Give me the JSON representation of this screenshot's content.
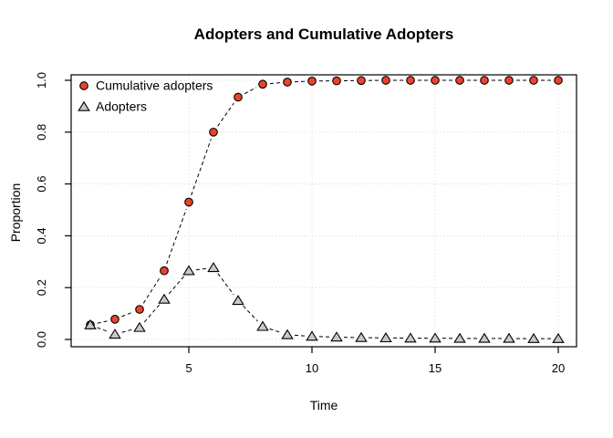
{
  "title": "Adopters and Cumulative Adopters",
  "x_axis": {
    "label": "Time",
    "tick_labels": [
      "5",
      "10",
      "15",
      "20"
    ]
  },
  "y_axis": {
    "label": "Proportion",
    "tick_labels": [
      "0.0",
      "0.2",
      "0.4",
      "0.6",
      "0.8",
      "1.0"
    ]
  },
  "legend": {
    "position": "topleft",
    "items": [
      {
        "label": "Cumulative adopters",
        "marker": "circle-icon"
      },
      {
        "label": "Adopters",
        "marker": "triangle-icon"
      }
    ]
  },
  "colors": {
    "cumulative_marker_fill": "#E9432E",
    "adopters_marker_fill": "#C8C8C8",
    "marker_stroke": "#000000",
    "line": "#000000",
    "grid": "#D8D8D8",
    "axis": "#000000",
    "background": "#FFFFFF"
  },
  "chart_data": {
    "type": "line",
    "title": "Adopters and Cumulative Adopters",
    "xlabel": "Time",
    "ylabel": "Proportion",
    "xlim": [
      1,
      20
    ],
    "ylim": [
      0,
      1
    ],
    "x_ticks": [
      5,
      10,
      15,
      20
    ],
    "y_ticks": [
      0.0,
      0.2,
      0.4,
      0.6,
      0.8,
      1.0
    ],
    "grid": true,
    "grid_style": "dotted",
    "line_style": "dashed",
    "legend_position": "topleft",
    "x": [
      1,
      2,
      3,
      4,
      5,
      6,
      7,
      8,
      9,
      10,
      11,
      12,
      13,
      14,
      15,
      16,
      17,
      18,
      19,
      20
    ],
    "series": [
      {
        "name": "Cumulative adopters",
        "marker": "circle",
        "marker_fill": "#E9432E",
        "values": [
          0.056,
          0.078,
          0.116,
          0.265,
          0.53,
          0.8,
          0.935,
          0.985,
          0.993,
          0.997,
          0.998,
          0.999,
          1.0,
          1.0,
          1.0,
          1.0,
          1.0,
          1.0,
          1.0,
          1.0
        ]
      },
      {
        "name": "Adopters",
        "marker": "triangle",
        "marker_fill": "#C8C8C8",
        "values": [
          0.056,
          0.02,
          0.046,
          0.155,
          0.265,
          0.277,
          0.15,
          0.05,
          0.018,
          0.012,
          0.009,
          0.007,
          0.006,
          0.005,
          0.005,
          0.004,
          0.004,
          0.004,
          0.003,
          0.003
        ]
      }
    ]
  }
}
